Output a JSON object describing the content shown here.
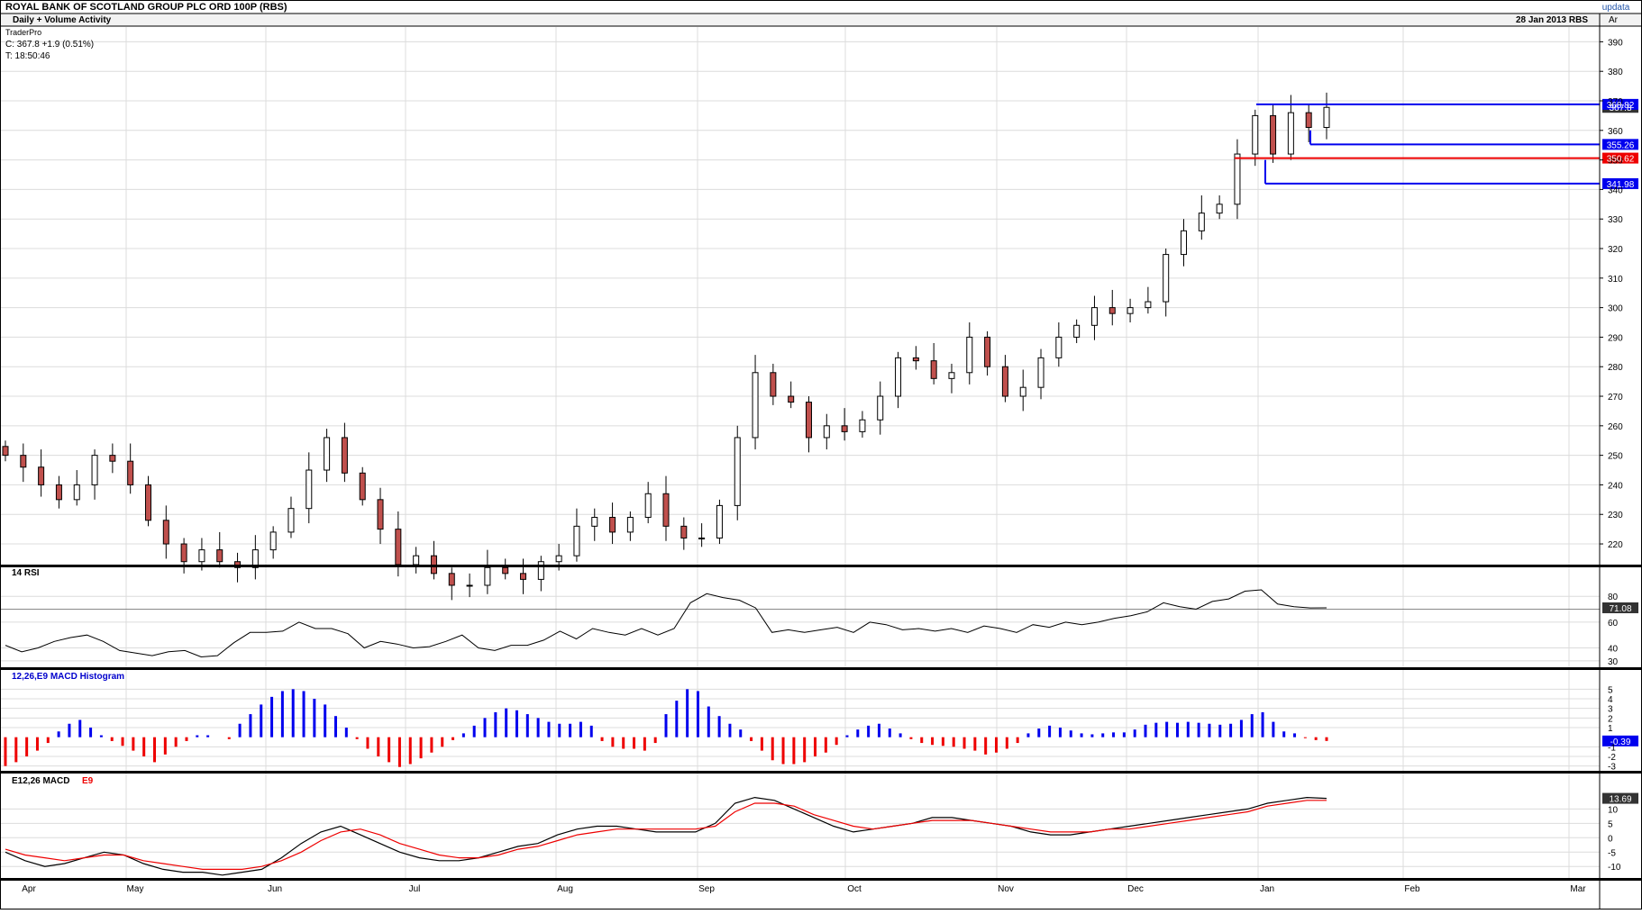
{
  "title": "ROYAL BANK OF SCOTLAND GROUP PLC ORD 100P (RBS)",
  "brand": "updata",
  "header": {
    "mode": "Daily + Volume Activity",
    "date_symbol": "28 Jan 2013  RBS",
    "tab": "Ar"
  },
  "info": {
    "source": "TraderPro",
    "close": "C: 367.8  +1.9 (0.51%)",
    "time": "T: 18:50:46"
  },
  "colors": {
    "blue": "#0000ee",
    "red": "#ee0000",
    "line": "#000000",
    "grid": "#dcdcdc",
    "price_up": "#ffffff",
    "price_down": "#c0504d"
  },
  "months": [
    "Apr",
    "May",
    "Jun",
    "Jul",
    "Aug",
    "Sep",
    "Oct",
    "Nov",
    "Dec",
    "Jan",
    "Feb",
    "Mar"
  ],
  "price_axis": {
    "ticks": [
      "220",
      "230",
      "240",
      "250",
      "260",
      "270",
      "280",
      "290",
      "300",
      "310",
      "320",
      "330",
      "340",
      "350",
      "360",
      "370",
      "380",
      "390"
    ]
  },
  "price_tags": [
    {
      "label": "367.8",
      "color": "dark"
    },
    {
      "label": "368.82",
      "color": "blue"
    },
    {
      "label": "355.26",
      "color": "blue"
    },
    {
      "label": "350.62",
      "color": "red"
    },
    {
      "label": "341.98",
      "color": "blue"
    }
  ],
  "rsi": {
    "title": "14 RSI",
    "ticks": [
      "30",
      "40",
      "60",
      "80"
    ],
    "tag": "71.08"
  },
  "hist": {
    "title": "12,26,E9 MACD Histogram",
    "ticks": [
      "-3",
      "-2",
      "-1",
      "1",
      "2",
      "3",
      "4",
      "5"
    ],
    "tag": "-0.39"
  },
  "macd": {
    "title": "E12,26 MACD",
    "signal_label": "E9",
    "ticks": [
      "-10",
      "-5",
      "0",
      "5",
      "10"
    ],
    "tag": "13.69"
  },
  "chart_data": [
    {
      "type": "candlestick",
      "title": "ROYAL BANK OF SCOTLAND GROUP PLC ORD 100P (RBS)",
      "x": [
        "Apr",
        "May",
        "Jun",
        "Jul",
        "Aug",
        "Sep",
        "Oct",
        "Nov",
        "Dec",
        "Jan",
        "Feb",
        "Mar"
      ],
      "ylim": [
        213,
        395
      ],
      "close_series": [
        {
          "month": "Apr",
          "close": 250
        },
        {
          "month": "Apr",
          "close": 246
        },
        {
          "month": "Apr",
          "close": 240
        },
        {
          "month": "Apr",
          "close": 235
        },
        {
          "month": "Apr",
          "close": 240
        },
        {
          "month": "Apr",
          "close": 250
        },
        {
          "month": "Apr",
          "close": 248
        },
        {
          "month": "May",
          "close": 240
        },
        {
          "month": "May",
          "close": 228
        },
        {
          "month": "May",
          "close": 220
        },
        {
          "month": "May",
          "close": 214
        },
        {
          "month": "May",
          "close": 218
        },
        {
          "month": "May",
          "close": 214
        },
        {
          "month": "May",
          "close": 212
        },
        {
          "month": "May",
          "close": 218
        },
        {
          "month": "May",
          "close": 224
        },
        {
          "month": "May",
          "close": 232
        },
        {
          "month": "May",
          "close": 245
        },
        {
          "month": "Jun",
          "close": 256
        },
        {
          "month": "Jun",
          "close": 244
        },
        {
          "month": "Jun",
          "close": 235
        },
        {
          "month": "Jun",
          "close": 225
        },
        {
          "month": "Jun",
          "close": 213
        },
        {
          "month": "Jun",
          "close": 216
        },
        {
          "month": "Jul",
          "close": 210
        },
        {
          "month": "Jul",
          "close": 206
        },
        {
          "month": "Jul",
          "close": 206
        },
        {
          "month": "Jul",
          "close": 212
        },
        {
          "month": "Jul",
          "close": 210
        },
        {
          "month": "Jul",
          "close": 208
        },
        {
          "month": "Jul",
          "close": 214
        },
        {
          "month": "Jul",
          "close": 216
        },
        {
          "month": "Aug",
          "close": 226
        },
        {
          "month": "Aug",
          "close": 229
        },
        {
          "month": "Aug",
          "close": 224
        },
        {
          "month": "Aug",
          "close": 229
        },
        {
          "month": "Aug",
          "close": 237
        },
        {
          "month": "Aug",
          "close": 226
        },
        {
          "month": "Aug",
          "close": 222
        },
        {
          "month": "Aug",
          "close": 222
        },
        {
          "month": "Aug",
          "close": 233
        },
        {
          "month": "Aug",
          "close": 256
        },
        {
          "month": "Sep",
          "close": 278
        },
        {
          "month": "Sep",
          "close": 270
        },
        {
          "month": "Sep",
          "close": 268
        },
        {
          "month": "Sep",
          "close": 256
        },
        {
          "month": "Sep",
          "close": 260
        },
        {
          "month": "Sep",
          "close": 258
        },
        {
          "month": "Sep",
          "close": 262
        },
        {
          "month": "Oct",
          "close": 270
        },
        {
          "month": "Oct",
          "close": 283
        },
        {
          "month": "Oct",
          "close": 282
        },
        {
          "month": "Oct",
          "close": 276
        },
        {
          "month": "Oct",
          "close": 278
        },
        {
          "month": "Oct",
          "close": 290
        },
        {
          "month": "Oct",
          "close": 280
        },
        {
          "month": "Oct",
          "close": 270
        },
        {
          "month": "Nov",
          "close": 273
        },
        {
          "month": "Nov",
          "close": 283
        },
        {
          "month": "Nov",
          "close": 290
        },
        {
          "month": "Nov",
          "close": 294
        },
        {
          "month": "Nov",
          "close": 300
        },
        {
          "month": "Nov",
          "close": 298
        },
        {
          "month": "Nov",
          "close": 300
        },
        {
          "month": "Dec",
          "close": 302
        },
        {
          "month": "Dec",
          "close": 318
        },
        {
          "month": "Dec",
          "close": 326
        },
        {
          "month": "Dec",
          "close": 332
        },
        {
          "month": "Dec",
          "close": 335
        },
        {
          "month": "Dec",
          "close": 352
        },
        {
          "month": "Jan",
          "close": 365
        },
        {
          "month": "Jan",
          "close": 352
        },
        {
          "month": "Jan",
          "close": 366
        },
        {
          "month": "Jan",
          "close": 361
        },
        {
          "month": "Jan",
          "close": 367.8
        }
      ],
      "levels": [
        {
          "label": "368.82",
          "color": "blue",
          "from": "Jan"
        },
        {
          "label": "355.26",
          "color": "blue",
          "from": "Jan"
        },
        {
          "label": "350.62",
          "color": "red",
          "from": "Dec"
        },
        {
          "label": "341.98",
          "color": "blue",
          "from": "Jan"
        }
      ],
      "last": 367.8
    },
    {
      "type": "line",
      "title": "14 RSI",
      "ylim": [
        25,
        92
      ],
      "values": [
        42,
        37,
        40,
        45,
        48,
        50,
        45,
        38,
        36,
        34,
        37,
        38,
        33,
        34,
        44,
        52,
        52,
        53,
        60,
        55,
        55,
        51,
        40,
        45,
        43,
        40,
        41,
        45,
        50,
        40,
        38,
        42,
        42,
        46,
        53,
        47,
        55,
        52,
        50,
        55,
        50,
        55,
        75,
        82,
        79,
        77,
        71,
        52,
        54,
        52,
        54,
        56,
        52,
        60,
        58,
        54,
        55,
        53,
        55,
        52,
        57,
        55,
        52,
        58,
        56,
        60,
        58,
        60,
        63,
        65,
        68,
        75,
        72,
        70,
        76,
        78,
        84,
        85,
        74,
        72,
        71,
        71.08
      ],
      "last": 71.08,
      "gridlines": [
        30,
        40,
        60,
        80
      ]
    },
    {
      "type": "bar",
      "title": "12,26,E9 MACD Histogram",
      "ylim": [
        -3.5,
        5.5
      ],
      "values": [
        -3,
        -2.6,
        -2,
        -1.4,
        -0.6,
        0.6,
        1.4,
        1.8,
        1,
        0.2,
        -0.4,
        -0.9,
        -1.4,
        -2,
        -2.6,
        -1.8,
        -1,
        -0.4,
        0.2,
        0.2,
        0,
        -0.2,
        1.4,
        2.4,
        3.4,
        4.2,
        4.8,
        5,
        4.8,
        4,
        3.4,
        2.2,
        1,
        -0.2,
        -1.2,
        -2,
        -2.6,
        -3.1,
        -2.8,
        -2.2,
        -1.6,
        -1,
        -0.3,
        0.4,
        1.2,
        2,
        2.6,
        3,
        2.8,
        2.4,
        2,
        1.6,
        1.4,
        1.4,
        1.6,
        1.2,
        -0.4,
        -1,
        -1.2,
        -1.2,
        -1.4,
        -0.6,
        2.4,
        3.8,
        5,
        4.8,
        3.2,
        2.2,
        1.4,
        0.8,
        -0.4,
        -1.4,
        -2.4,
        -2.8,
        -2.8,
        -2.6,
        -2,
        -1.6,
        -0.8,
        0.2,
        0.8,
        1.2,
        1.4,
        0.9,
        0.4,
        -0.2,
        -0.6,
        -0.8,
        -0.9,
        -1,
        -1.2,
        -1.4,
        -1.8,
        -1.6,
        -1.2,
        -0.6,
        0.4,
        0.9,
        1.2,
        1,
        0.7,
        0.4,
        0.3,
        0.4,
        0.5,
        0.5,
        0.8,
        1.3,
        1.5,
        1.6,
        1.5,
        1.6,
        1.5,
        1.4,
        1.3,
        1.4,
        1.8,
        2.4,
        2.6,
        1.6,
        0.6,
        0.4,
        -0.1,
        -0.3,
        -0.39
      ],
      "last": -0.39,
      "colors": {
        "positive": "blue",
        "negative": "red"
      }
    },
    {
      "type": "line",
      "title": "E12,26 MACD",
      "ylim": [
        -14,
        17
      ],
      "series": [
        {
          "name": "E12,26 MACD",
          "values": [
            -5,
            -8,
            -10,
            -9,
            -7,
            -5,
            -6,
            -9,
            -11,
            -12,
            -12,
            -13,
            -12,
            -11,
            -7,
            -2,
            2,
            4,
            1,
            -2,
            -5,
            -7,
            -8,
            -8,
            -7,
            -5,
            -3,
            -2,
            1,
            3,
            4,
            4,
            3,
            2,
            2,
            2,
            5,
            12,
            14,
            13,
            10,
            7,
            4,
            2,
            3,
            4,
            5,
            7,
            7,
            6,
            5,
            4,
            2,
            1,
            1,
            2,
            3,
            4,
            5,
            6,
            7,
            8,
            9,
            10,
            12,
            13,
            14,
            13.69
          ]
        },
        {
          "name": "E9",
          "values": [
            -4,
            -6,
            -7,
            -8,
            -7,
            -6,
            -6,
            -8,
            -9,
            -10,
            -11,
            -11,
            -11,
            -10,
            -8,
            -5,
            -1,
            2,
            3,
            1,
            -2,
            -4,
            -6,
            -7,
            -7,
            -6,
            -4,
            -3,
            -1,
            1,
            2,
            3,
            3,
            3,
            3,
            3,
            4,
            9,
            12,
            12,
            11,
            8,
            6,
            4,
            3,
            4,
            5,
            6,
            6,
            6,
            5,
            4,
            3,
            2,
            2,
            2,
            3,
            3,
            4,
            5,
            6,
            7,
            8,
            9,
            11,
            12,
            13,
            13
          ]
        }
      ],
      "last": 13.69,
      "signal_label": "E9"
    }
  ]
}
